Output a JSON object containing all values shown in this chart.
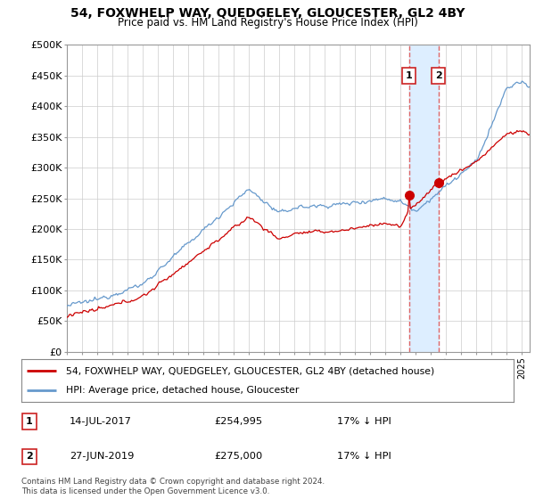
{
  "title": "54, FOXWHELP WAY, QUEDGELEY, GLOUCESTER, GL2 4BY",
  "subtitle": "Price paid vs. HM Land Registry's House Price Index (HPI)",
  "legend_label_red": "54, FOXWHELP WAY, QUEDGELEY, GLOUCESTER, GL2 4BY (detached house)",
  "legend_label_blue": "HPI: Average price, detached house, Gloucester",
  "sale1_label": "1",
  "sale1_date": "14-JUL-2017",
  "sale1_price": "£254,995",
  "sale1_hpi": "17% ↓ HPI",
  "sale1_year": 2017.54,
  "sale1_price_val": 254995,
  "sale2_label": "2",
  "sale2_date": "27-JUN-2019",
  "sale2_price": "£275,000",
  "sale2_hpi": "17% ↓ HPI",
  "sale2_year": 2019.49,
  "sale2_price_val": 275000,
  "ylabel_ticks": [
    "£0",
    "£50K",
    "£100K",
    "£150K",
    "£200K",
    "£250K",
    "£300K",
    "£350K",
    "£400K",
    "£450K",
    "£500K"
  ],
  "ytick_vals": [
    0,
    50000,
    100000,
    150000,
    200000,
    250000,
    300000,
    350000,
    400000,
    450000,
    500000
  ],
  "copyright": "Contains HM Land Registry data © Crown copyright and database right 2024.\nThis data is licensed under the Open Government Licence v3.0.",
  "red_color": "#cc0000",
  "blue_color": "#6699cc",
  "shade_color": "#ddeeff",
  "dashed_line_color": "#dd6666",
  "background_color": "#ffffff",
  "grid_color": "#cccccc"
}
